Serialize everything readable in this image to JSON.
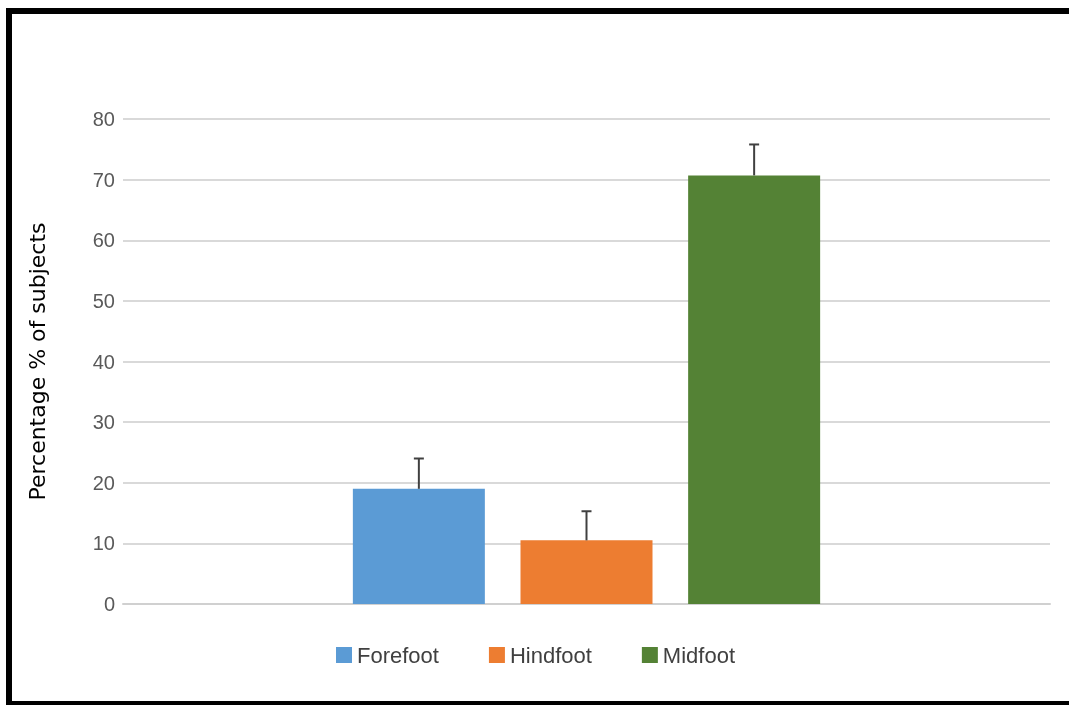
{
  "chart_data": {
    "type": "bar",
    "ylabel": "Percentage % of subjects",
    "categories": [
      null
    ],
    "series": [
      {
        "name": "Forefoot",
        "color": "#5b9bd5",
        "values": [
          19
        ],
        "errors": [
          [
            19,
            24
          ]
        ]
      },
      {
        "name": "Hindfoot",
        "color": "#ed7d31",
        "values": [
          10.5
        ],
        "errors": [
          [
            10.5,
            15.3
          ]
        ]
      },
      {
        "name": "Midfoot",
        "color": "#548235",
        "values": [
          70.7
        ],
        "errors": [
          [
            70.7,
            75.8
          ]
        ]
      }
    ],
    "ylim": [
      0,
      80
    ],
    "yticks": [
      0,
      10,
      20,
      30,
      40,
      50,
      60,
      70,
      80
    ],
    "grid": "y",
    "legend": "bottom"
  }
}
